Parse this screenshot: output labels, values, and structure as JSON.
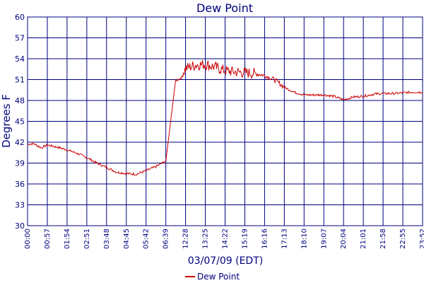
{
  "chart_data": {
    "type": "line",
    "title": "Dew Point",
    "xlabel": "03/07/09 (EDT)",
    "ylabel": "Degrees F",
    "xlim_minutes": [
      0,
      1439
    ],
    "ylim": [
      30,
      60
    ],
    "yticks": [
      30,
      33,
      36,
      39,
      42,
      45,
      48,
      51,
      54,
      57,
      60
    ],
    "xtick_labels": [
      "00:00",
      "00:57",
      "01:54",
      "02:51",
      "03:48",
      "04:45",
      "05:42",
      "06:39",
      "12:28",
      "13:25",
      "14:22",
      "15:19",
      "16:16",
      "17:13",
      "18:10",
      "19:07",
      "20:04",
      "21:01",
      "21:58",
      "22:55",
      "23:52"
    ],
    "grid": true,
    "legend_position": "bottom-center",
    "colors": {
      "series": "#cc0000",
      "grid": "#000080",
      "text": "#000080"
    },
    "series": [
      {
        "name": "Dew Point",
        "x_ticks": [
          0,
          0.3,
          0.7,
          1.0,
          1.5,
          2.0,
          2.5,
          3.0,
          3.5,
          4.0,
          4.5,
          5.0,
          5.5,
          6.0,
          6.5,
          7.0,
          7.5,
          7.85,
          7.9,
          8.0,
          8.5,
          9.0,
          9.5,
          10.0,
          10.5,
          11.0,
          11.5,
          12.0,
          12.5,
          13.0,
          13.5,
          14.0,
          14.5,
          15.0,
          15.5,
          16.0,
          16.5,
          17.0,
          17.5,
          18.0,
          18.5,
          19.0,
          19.5,
          20.0
        ],
        "values": [
          41.7,
          41.8,
          41.2,
          41.6,
          41.3,
          40.9,
          40.4,
          39.8,
          39.0,
          38.4,
          37.7,
          37.5,
          37.4,
          37.9,
          38.5,
          39.3,
          50.8,
          51.4,
          52.1,
          52.6,
          53.1,
          53.2,
          52.8,
          52.3,
          52.1,
          52.0,
          51.9,
          51.6,
          51.0,
          49.9,
          49.2,
          48.8,
          48.8,
          48.8,
          48.6,
          48.1,
          48.5,
          48.6,
          48.9,
          49.0,
          49.0,
          49.1,
          49.2,
          49.2
        ]
      }
    ]
  }
}
